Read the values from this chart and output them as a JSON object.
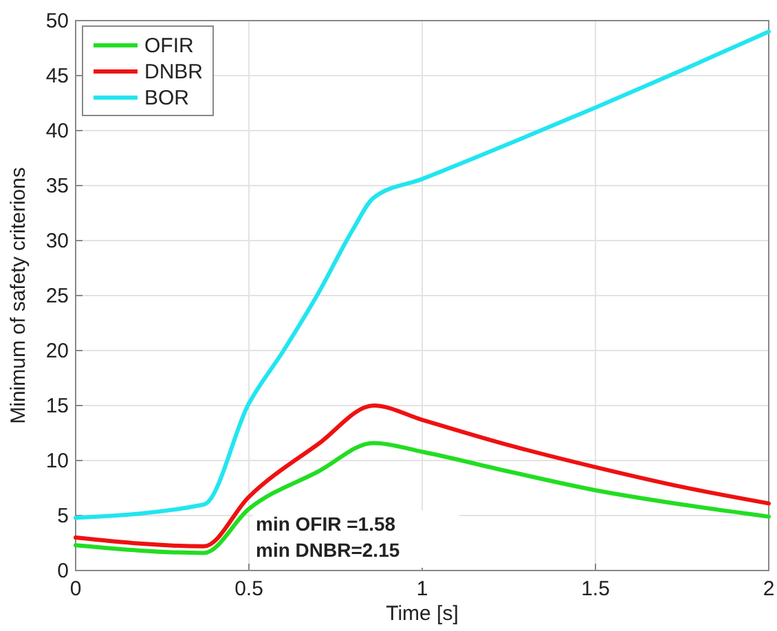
{
  "chart_data": {
    "type": "line",
    "xlabel": "Time [s]",
    "ylabel": "Minimum of safety criterions",
    "xlim": [
      0,
      2
    ],
    "xticks": [
      0,
      0.5,
      1,
      1.5,
      2
    ],
    "ylim": [
      0,
      50
    ],
    "yticks": [
      0,
      5,
      10,
      15,
      20,
      25,
      30,
      35,
      40,
      45,
      50
    ],
    "grid": true,
    "legend": "top left",
    "line_style": "solid",
    "marker": "none",
    "annotations": [
      "min OFIR =1.58",
      "min DNBR=2.15"
    ],
    "series": [
      {
        "name": "OFIR",
        "color": "#22dd22",
        "x": [
          0,
          0.37,
          0.5,
          0.7,
          0.86,
          1,
          1.25,
          1.5,
          1.75,
          2
        ],
        "values": [
          2.3,
          1.6,
          5.6,
          9.0,
          11.6,
          10.8,
          9.0,
          7.3,
          6.0,
          4.9
        ]
      },
      {
        "name": "DNBR",
        "color": "#ee1111",
        "x": [
          0,
          0.37,
          0.5,
          0.7,
          0.86,
          1,
          1.25,
          1.5,
          1.75,
          2
        ],
        "values": [
          3.0,
          2.2,
          6.7,
          11.5,
          15.0,
          13.7,
          11.4,
          9.4,
          7.6,
          6.1
        ]
      },
      {
        "name": "BOR",
        "color": "#22e5f0",
        "x": [
          0,
          0.37,
          0.5,
          0.6,
          0.7,
          0.8,
          0.86,
          1,
          1.25,
          1.5,
          1.75,
          2
        ],
        "values": [
          4.8,
          6.0,
          15.2,
          20.0,
          25.2,
          31.0,
          33.9,
          35.6,
          38.8,
          42.1,
          45.5,
          49.0
        ]
      }
    ]
  }
}
